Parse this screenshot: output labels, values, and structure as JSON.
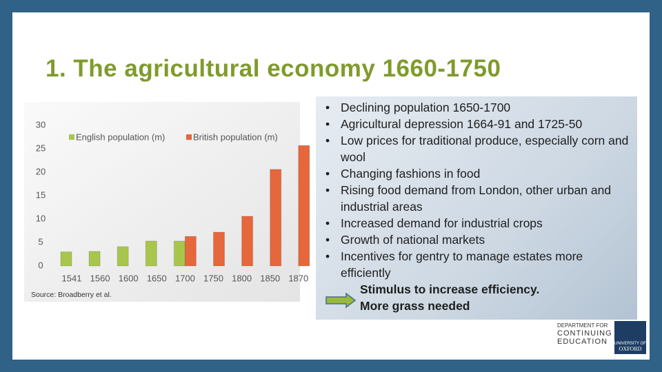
{
  "title": "1.  The agricultural economy 1660-1750",
  "chart_data": {
    "type": "bar",
    "categories": [
      "1541",
      "1560",
      "1600",
      "1650",
      "1700",
      "1750",
      "1800",
      "1850",
      "1870"
    ],
    "series": [
      {
        "name": "English population (m)",
        "color": "#a9c64c",
        "values": [
          3,
          3.1,
          4.1,
          5.3,
          5.3,
          null,
          null,
          null,
          null
        ]
      },
      {
        "name": "British population (m)",
        "color": "#e6673b",
        "values": [
          null,
          null,
          null,
          null,
          6.3,
          7.2,
          10.6,
          20.6,
          25.7
        ]
      }
    ],
    "ylim": [
      0,
      30
    ],
    "yticks": [
      0,
      5,
      10,
      15,
      20,
      25,
      30
    ],
    "grid": false,
    "legend": "top",
    "source": "Source: Broadberry et al."
  },
  "bullets": [
    "Declining population 1650-1700",
    "Agricultural depression 1664-91 and 1725-50",
    "Low prices for traditional produce, especially corn and wool",
    "Changing fashions in food",
    "Rising food demand from London, other urban and industrial areas",
    "Increased demand for industrial crops",
    "Growth of national markets",
    "Incentives for gentry to manage estates more efficiently"
  ],
  "conclusion": [
    "Stimulus to increase efficiency.",
    "More grass needed"
  ],
  "logos": {
    "department": [
      "DEPARTMENT FOR",
      "CONTINUING",
      "EDUCATION"
    ],
    "university": [
      "UNIVERSITY OF",
      "OXFORD"
    ]
  }
}
